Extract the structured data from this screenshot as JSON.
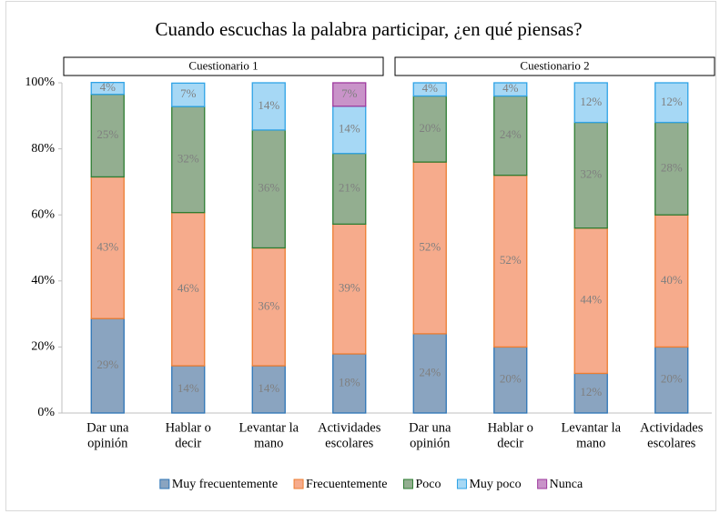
{
  "chart_data": {
    "type": "bar",
    "stacked": true,
    "title": "Cuando escuchas la palabra participar, ¿en qué piensas?",
    "groups": [
      "Cuestionario 1",
      "Cuestionario 2"
    ],
    "categories": [
      [
        "Dar una",
        "opinión"
      ],
      [
        "Hablar o",
        "decir"
      ],
      [
        "Levantar la",
        "mano"
      ],
      [
        "Actividades",
        "escolares"
      ],
      [
        "Dar una",
        "opinión"
      ],
      [
        "Hablar o",
        "decir"
      ],
      [
        "Levantar la",
        "mano"
      ],
      [
        "Actividades",
        "escolares"
      ]
    ],
    "ylim": [
      0,
      100
    ],
    "yticks": [
      {
        "value": 0,
        "label": "0%"
      },
      {
        "value": 20,
        "label": "20%"
      },
      {
        "value": 40,
        "label": "40%"
      },
      {
        "value": 60,
        "label": "60%"
      },
      {
        "value": 80,
        "label": "80%"
      },
      {
        "value": 100,
        "label": "100%"
      }
    ],
    "legend": "bottom",
    "series": [
      {
        "name": "Muy frecuentemente",
        "color": "#8aa4c0",
        "stroke": "#2e75b6",
        "values": [
          28.6,
          14.3,
          14.3,
          17.9,
          24,
          20,
          12,
          20
        ],
        "value_labels": [
          "29%",
          "14%",
          "14%",
          "18%",
          "24%",
          "20%",
          "12%",
          "20%"
        ]
      },
      {
        "name": "Frecuentemente",
        "color": "#f6ab8c",
        "stroke": "#ed7d31",
        "values": [
          42.9,
          46.4,
          35.7,
          39.3,
          52,
          52,
          44,
          40
        ],
        "value_labels": [
          "43%",
          "46%",
          "36%",
          "39%",
          "52%",
          "52%",
          "44%",
          "40%"
        ]
      },
      {
        "name": "Poco",
        "color": "#93ae90",
        "stroke": "#2e7d32",
        "values": [
          25,
          32.1,
          35.7,
          21.4,
          20,
          24,
          32,
          28
        ],
        "value_labels": [
          "25%",
          "32%",
          "36%",
          "21%",
          "20%",
          "24%",
          "32%",
          "28%"
        ]
      },
      {
        "name": "Muy poco",
        "color": "#a6d8f5",
        "stroke": "#2fa3e6",
        "values": [
          3.6,
          7.1,
          14.3,
          14.3,
          4,
          4,
          12,
          12
        ],
        "value_labels": [
          "4%",
          "7%",
          "14%",
          "14%",
          "4%",
          "4%",
          "12%",
          "12%"
        ]
      },
      {
        "name": "Nunca",
        "color": "#c993c9",
        "stroke": "#9e3a9e",
        "values": [
          null,
          null,
          null,
          7.1,
          null,
          null,
          null,
          null
        ],
        "value_labels": [
          null,
          null,
          null,
          "7%",
          null,
          null,
          null,
          null
        ]
      }
    ]
  }
}
